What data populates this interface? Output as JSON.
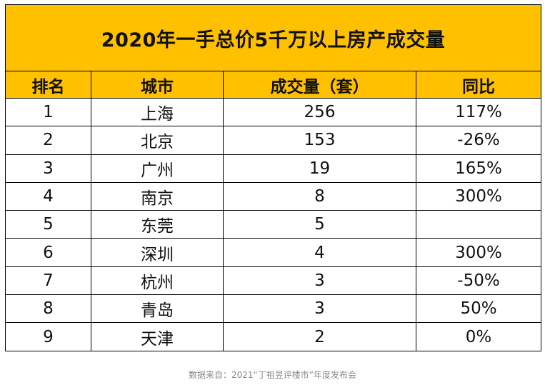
{
  "title": "2020年一手总价5千万以上房产成交量",
  "columns": [
    "排名",
    "城市",
    "成交量（套）",
    "同比"
  ],
  "rows": [
    {
      "rank": "1",
      "city": "上海",
      "volume": "256",
      "yoy": "117%"
    },
    {
      "rank": "2",
      "city": "北京",
      "volume": "153",
      "yoy": "-26%"
    },
    {
      "rank": "3",
      "city": "广州",
      "volume": "19",
      "yoy": "165%"
    },
    {
      "rank": "4",
      "city": "南京",
      "volume": "8",
      "yoy": "300%"
    },
    {
      "rank": "5",
      "city": "东莞",
      "volume": "5",
      "yoy": ""
    },
    {
      "rank": "6",
      "city": "深圳",
      "volume": "4",
      "yoy": "300%"
    },
    {
      "rank": "7",
      "city": "杭州",
      "volume": "3",
      "yoy": "-50%"
    },
    {
      "rank": "8",
      "city": "青岛",
      "volume": "3",
      "yoy": "50%"
    },
    {
      "rank": "9",
      "city": "天津",
      "volume": "2",
      "yoy": "0%"
    }
  ],
  "source": "数据来自：2021“丁祖昱评楼市”年度发布会",
  "colors": {
    "header_bg": "#ffc000",
    "border": "#000000",
    "footer_text": "#8a8a8a"
  }
}
